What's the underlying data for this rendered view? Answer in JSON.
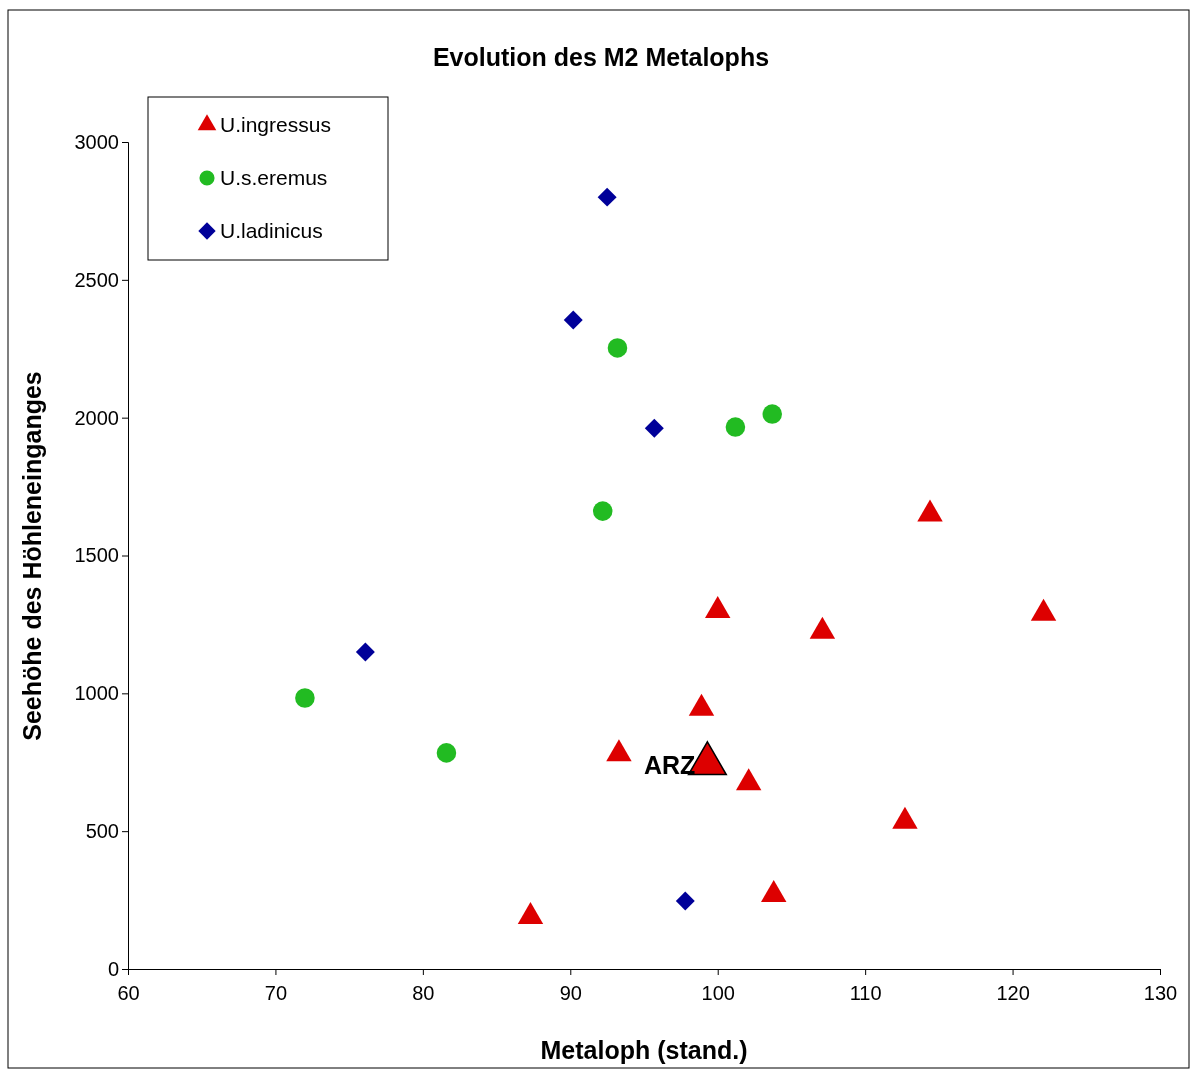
{
  "chart_data": {
    "type": "scatter",
    "title": "Evolution des M2 Metalophs",
    "xlabel": "Metaloph (stand.)",
    "ylabel": "Seehöhe des Höhleneinganges",
    "xlim": [
      60,
      130
    ],
    "xticks": [
      60,
      70,
      80,
      90,
      100,
      110,
      120,
      130
    ],
    "ylim": [
      0,
      3000
    ],
    "yticks": [
      0,
      500,
      1000,
      1500,
      2000,
      2500,
      3000
    ],
    "legend": "top left",
    "series": [
      {
        "name": "U.ingressus",
        "color": "#dd0000",
        "marker": "triangle",
        "x": [
          87.3,
          93.3,
          98.9,
          100.0,
          102.1,
          103.8,
          107.1,
          112.7,
          114.4,
          122.1
        ],
        "values": [
          190,
          780,
          945,
          1300,
          675,
          270,
          1225,
          535,
          1650,
          1290
        ]
      },
      {
        "name": "U.s.eremus",
        "color": "#22bb22",
        "marker": "circle",
        "x": [
          72.0,
          81.6,
          92.2,
          93.2,
          101.2,
          103.7
        ],
        "values": [
          983,
          784,
          1661,
          2253,
          1966,
          2013
        ]
      },
      {
        "name": "U.ladinicus",
        "color": "#000099",
        "marker": "diamond",
        "x": [
          76.1,
          90.2,
          92.5,
          95.7,
          97.8
        ],
        "values": [
          1150,
          2354,
          2800,
          1962,
          247
        ]
      },
      {
        "color": "#dd0000",
        "marker": "triangle",
        "x": [
          99.3
        ],
        "values": [
          745
        ]
      }
    ],
    "annotations": [
      "ARZ"
    ]
  }
}
